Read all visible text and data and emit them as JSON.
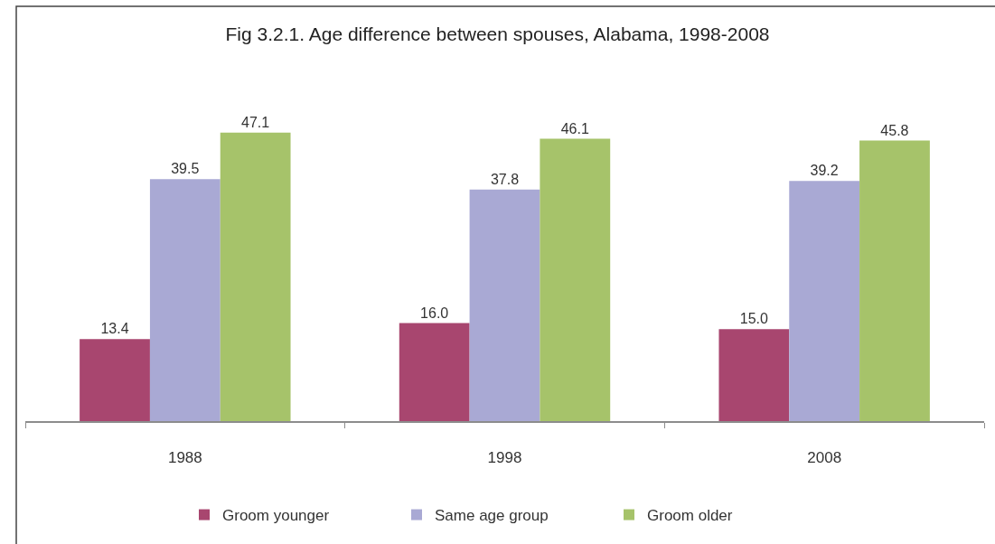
{
  "chart_data": {
    "type": "bar",
    "title": "Fig 3.2.1. Age difference between spouses, Alabama, 1998-2008",
    "categories": [
      "1988",
      "1998",
      "2008"
    ],
    "series": [
      {
        "name": "Groom younger",
        "color": "#a8466f",
        "values": [
          13.4,
          16.0,
          15.0
        ],
        "value_labels": [
          "13.4",
          "16.0",
          "15.0"
        ]
      },
      {
        "name": "Same age group",
        "color": "#a9a9d4",
        "values": [
          39.5,
          37.8,
          39.2
        ],
        "value_labels": [
          "39.5",
          "37.8",
          "39.2"
        ]
      },
      {
        "name": "Groom older",
        "color": "#a6c36a",
        "values": [
          47.1,
          46.1,
          45.8
        ],
        "value_labels": [
          "47.1",
          "46.1",
          "45.8"
        ]
      }
    ],
    "tick_labels": "x",
    "legend": "bottom"
  }
}
